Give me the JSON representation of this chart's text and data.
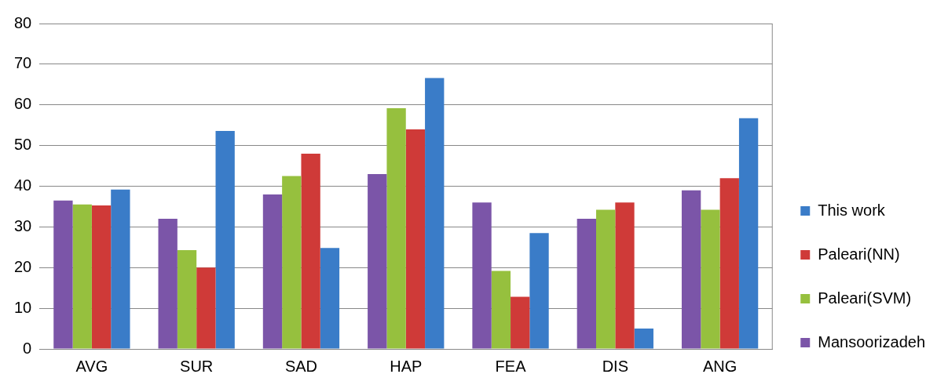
{
  "chart_data": {
    "type": "bar",
    "categories": [
      "AVG",
      "SUR",
      "SAD",
      "HAP",
      "FEA",
      "DIS",
      "ANG"
    ],
    "series": [
      {
        "name": "Mansoorizadeh",
        "color": "#7b55a8",
        "values": [
          36.5,
          32,
          38,
          43,
          36,
          32,
          39
        ]
      },
      {
        "name": "Paleari(SVM)",
        "color": "#96c03e",
        "values": [
          35.5,
          24.3,
          42.5,
          59.2,
          19.2,
          34.2,
          34.2
        ]
      },
      {
        "name": "Paleari(NN)",
        "color": "#cf3a38",
        "values": [
          35.3,
          20,
          48,
          54,
          12.8,
          36,
          42
        ]
      },
      {
        "name": "This work",
        "color": "#3a7cc8",
        "values": [
          39.2,
          53.6,
          24.8,
          66.6,
          28.5,
          5,
          56.7
        ]
      }
    ],
    "ylim": [
      0,
      80
    ],
    "yticks": [
      0,
      10,
      20,
      30,
      40,
      50,
      60,
      70,
      80
    ],
    "grid": "y",
    "legend": "right"
  }
}
